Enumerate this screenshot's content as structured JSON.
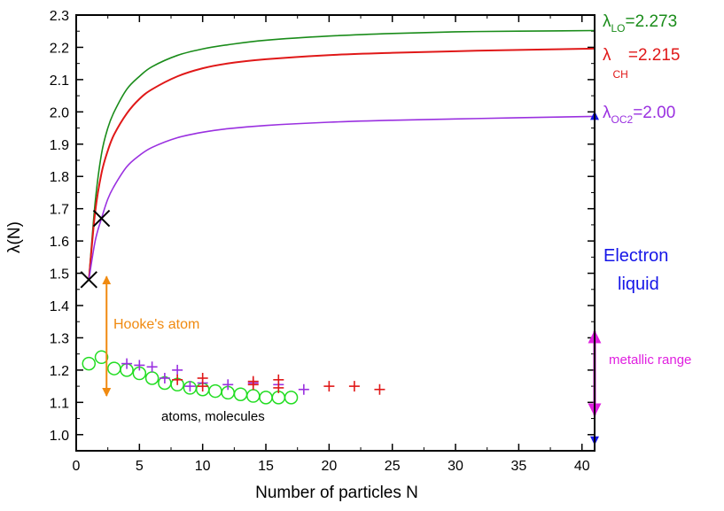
{
  "colors": {
    "green": "#1a8c1a",
    "red": "#e01818",
    "purple": "#9a30e0",
    "blue": "#1616e8",
    "magenta": "#e020e0",
    "orange": "#f08a10",
    "black": "#000000",
    "circle_green": "#22dd22"
  },
  "chart_data": {
    "type": "line",
    "title": "",
    "xlabel": "Number of  particles N",
    "ylabel": "λ(N)",
    "xlim": [
      0,
      41
    ],
    "ylim": [
      0.95,
      2.3
    ],
    "xticks": [
      0,
      5,
      10,
      15,
      20,
      25,
      30,
      35,
      40
    ],
    "yticks": [
      1.0,
      1.1,
      1.2,
      1.3,
      1.4,
      1.5,
      1.6,
      1.7,
      1.8,
      1.9,
      2.0,
      2.1,
      2.2,
      2.3
    ],
    "series": [
      {
        "name": "LO",
        "color_key": "green",
        "limit": 2.273,
        "x": [
          1,
          1.5,
          2,
          2.5,
          3,
          4,
          5,
          6,
          8,
          10,
          12,
          15,
          20,
          25,
          30,
          35,
          41
        ],
        "y": [
          1.48,
          1.72,
          1.87,
          1.95,
          2.0,
          2.07,
          2.11,
          2.14,
          2.175,
          2.195,
          2.208,
          2.222,
          2.235,
          2.243,
          2.248,
          2.25,
          2.252
        ]
      },
      {
        "name": "CH",
        "color_key": "red",
        "limit": 2.215,
        "x": [
          1,
          1.5,
          2,
          2.5,
          3,
          4,
          5,
          6,
          8,
          10,
          12,
          15,
          20,
          25,
          30,
          35,
          41
        ],
        "y": [
          1.48,
          1.69,
          1.81,
          1.88,
          1.93,
          1.995,
          2.04,
          2.07,
          2.11,
          2.135,
          2.15,
          2.163,
          2.176,
          2.183,
          2.188,
          2.192,
          2.196
        ]
      },
      {
        "name": "OC2",
        "color_key": "purple",
        "limit": 2.0,
        "x": [
          1,
          1.5,
          2,
          2.5,
          3,
          4,
          5,
          6,
          8,
          10,
          12,
          15,
          20,
          25,
          30,
          35,
          41
        ],
        "y": [
          1.48,
          1.6,
          1.67,
          1.73,
          1.77,
          1.83,
          1.865,
          1.89,
          1.92,
          1.937,
          1.948,
          1.958,
          1.968,
          1.974,
          1.978,
          1.982,
          1.986
        ]
      }
    ],
    "hooke_points": [
      {
        "x": 1,
        "y": 1.48
      },
      {
        "x": 2,
        "y": 1.67
      }
    ],
    "atom_circles": [
      {
        "x": 1,
        "y": 1.22
      },
      {
        "x": 2,
        "y": 1.24
      },
      {
        "x": 3,
        "y": 1.205
      },
      {
        "x": 4,
        "y": 1.2
      },
      {
        "x": 5,
        "y": 1.19
      },
      {
        "x": 6,
        "y": 1.175
      },
      {
        "x": 7,
        "y": 1.16
      },
      {
        "x": 8,
        "y": 1.155
      },
      {
        "x": 9,
        "y": 1.145
      },
      {
        "x": 10,
        "y": 1.14
      },
      {
        "x": 11,
        "y": 1.135
      },
      {
        "x": 12,
        "y": 1.13
      },
      {
        "x": 13,
        "y": 1.125
      },
      {
        "x": 14,
        "y": 1.12
      },
      {
        "x": 15,
        "y": 1.115
      },
      {
        "x": 16,
        "y": 1.115
      },
      {
        "x": 17,
        "y": 1.115
      }
    ],
    "molecule_plus_purple": [
      {
        "x": 4,
        "y": 1.22
      },
      {
        "x": 5,
        "y": 1.215
      },
      {
        "x": 6,
        "y": 1.21
      },
      {
        "x": 7,
        "y": 1.175
      },
      {
        "x": 8,
        "y": 1.2
      },
      {
        "x": 9,
        "y": 1.15
      },
      {
        "x": 10,
        "y": 1.16
      },
      {
        "x": 12,
        "y": 1.155
      },
      {
        "x": 14,
        "y": 1.16
      },
      {
        "x": 16,
        "y": 1.155
      },
      {
        "x": 18,
        "y": 1.14
      }
    ],
    "molecule_plus_red": [
      {
        "x": 8,
        "y": 1.17
      },
      {
        "x": 10,
        "y": 1.175
      },
      {
        "x": 10,
        "y": 1.15
      },
      {
        "x": 14,
        "y": 1.165
      },
      {
        "x": 14,
        "y": 1.155
      },
      {
        "x": 16,
        "y": 1.17
      },
      {
        "x": 16,
        "y": 1.145
      },
      {
        "x": 20,
        "y": 1.15
      },
      {
        "x": 22,
        "y": 1.15
      },
      {
        "x": 24,
        "y": 1.14
      }
    ],
    "arrows": {
      "hooke": {
        "x": 2.4,
        "y_from": 1.49,
        "y_to": 1.12
      },
      "electron_liquid": {
        "x": 41,
        "y_from": 2.0,
        "y_to": 0.97
      },
      "metallic_range": {
        "x": 41,
        "y_from": 1.32,
        "y_to": 1.06
      }
    }
  },
  "labels": {
    "lo": {
      "greek": "λ",
      "sub": "LO",
      "value": "=2.273"
    },
    "ch": {
      "greek": "λ",
      "sub": "CH",
      "value": "=2.215"
    },
    "oc2": {
      "greek": "λ",
      "sub": "OC2",
      "value": "=2.00"
    },
    "hooke": "Hooke's atom",
    "atoms_molecules": "atoms, molecules",
    "electron_line1": "Electron",
    "electron_line2": "liquid",
    "metallic": "metallic range"
  }
}
